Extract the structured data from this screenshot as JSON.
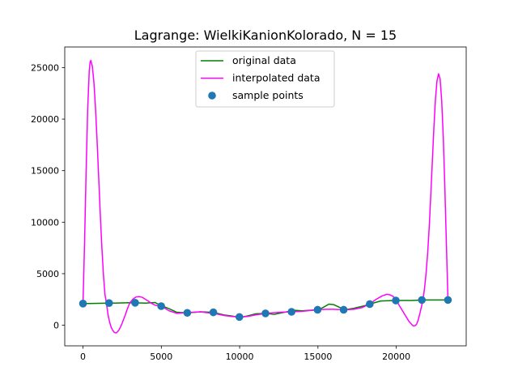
{
  "chart_data": {
    "type": "line",
    "title": "Lagrange: WielkiKanionKolorado, N = 15",
    "xlabel": "",
    "ylabel": "",
    "xlim": [
      -1165,
      24465
    ],
    "ylim": [
      -2000,
      27000
    ],
    "xticks": [
      0,
      5000,
      10000,
      15000,
      20000
    ],
    "yticks": [
      0,
      5000,
      10000,
      15000,
      20000,
      25000
    ],
    "xtick_labels": [
      "0",
      "5000",
      "10000",
      "15000",
      "20000"
    ],
    "ytick_labels": [
      "0",
      "5000",
      "10000",
      "15000",
      "20000",
      "25000"
    ],
    "grid": false,
    "legend_position": "upper center",
    "series": [
      {
        "name": "original data",
        "kind": "line",
        "color": "#008000",
        "x": [
          0,
          1000,
          2000,
          3000,
          4000,
          4600,
          5000,
          5500,
          6000,
          6700,
          7500,
          8300,
          9000,
          9500,
          10000,
          10500,
          11000,
          11700,
          12200,
          13000,
          13500,
          14000,
          15000,
          15300,
          15700,
          16000,
          16700,
          17300,
          18000,
          18300,
          19000,
          20000,
          21000,
          21700,
          22500,
          23300
        ],
        "y": [
          2100,
          2130,
          2150,
          2180,
          2150,
          2200,
          1900,
          1600,
          1250,
          1200,
          1300,
          1250,
          1000,
          900,
          750,
          900,
          1100,
          1150,
          1050,
          1300,
          1450,
          1400,
          1500,
          1700,
          2050,
          2000,
          1500,
          1650,
          1900,
          2050,
          2350,
          2400,
          2400,
          2450,
          2450,
          2450
        ]
      },
      {
        "name": "interpolated data",
        "kind": "line",
        "color": "#ff00ff",
        "x": [
          0,
          100,
          200,
          300,
          400,
          450,
          500,
          600,
          700,
          800,
          900,
          1000,
          1100,
          1200,
          1300,
          1400,
          1500,
          1600,
          1700,
          1800,
          1900,
          2000,
          2100,
          2200,
          2300,
          2400,
          2500,
          2600,
          2700,
          2800,
          2900,
          3000,
          3200,
          3400,
          3600,
          3800,
          4000,
          4200,
          4400,
          4600,
          4800,
          5000,
          5500,
          6000,
          6500,
          7000,
          7500,
          8000,
          8500,
          9000,
          9500,
          10000,
          10500,
          11000,
          11700,
          12500,
          13300,
          14000,
          15000,
          15500,
          16000,
          16700,
          17300,
          17800,
          18300,
          18700,
          19100,
          19400,
          19600,
          19800,
          20000,
          20200,
          20400,
          20600,
          20800,
          21000,
          21100,
          21200,
          21300,
          21400,
          21500,
          21600,
          21700,
          21800,
          21900,
          22000,
          22100,
          22200,
          22300,
          22400,
          22500,
          22600,
          22700,
          22800,
          22900,
          23000,
          23100,
          23200,
          23300
        ],
        "y": [
          2100,
          8000,
          15000,
          21000,
          24700,
          25500,
          25700,
          25100,
          23500,
          21000,
          17900,
          14400,
          10900,
          7700,
          5000,
          3000,
          2100,
          1000,
          300,
          -200,
          -500,
          -700,
          -750,
          -650,
          -450,
          -150,
          200,
          600,
          1000,
          1450,
          1850,
          2200,
          2550,
          2750,
          2780,
          2700,
          2500,
          2300,
          2100,
          1950,
          1880,
          1850,
          1400,
          1150,
          1200,
          1250,
          1300,
          1200,
          1100,
          950,
          850,
          800,
          850,
          1000,
          1150,
          1250,
          1300,
          1350,
          1500,
          1550,
          1550,
          1500,
          1550,
          1700,
          2050,
          2500,
          2850,
          3000,
          2950,
          2800,
          2400,
          1900,
          1400,
          900,
          400,
          50,
          -80,
          -50,
          100,
          500,
          1100,
          1750,
          2450,
          3500,
          5000,
          6900,
          9400,
          12500,
          15800,
          19100,
          21900,
          23700,
          24400,
          23900,
          21800,
          18300,
          13500,
          7900,
          2450
        ]
      },
      {
        "name": "sample points",
        "kind": "scatter",
        "color": "#1f77b4",
        "x": [
          0,
          1664,
          3328,
          4993,
          6657,
          8321,
          9985,
          11650,
          13314,
          14978,
          16642,
          18307,
          19971,
          21635,
          23299
        ],
        "y": [
          2100,
          2150,
          2180,
          1850,
          1200,
          1250,
          800,
          1150,
          1300,
          1500,
          1500,
          2050,
          2400,
          2450,
          2450
        ]
      }
    ]
  }
}
